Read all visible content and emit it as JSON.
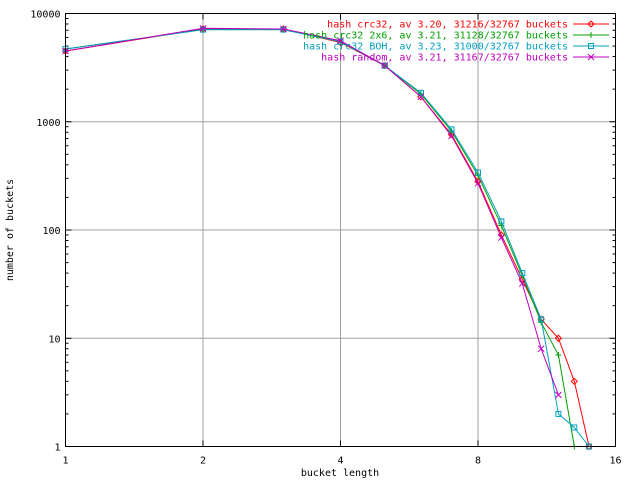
{
  "chart_data": {
    "type": "line",
    "xlabel": "bucket length",
    "ylabel": "number of buckets",
    "x_scale": "log2",
    "y_scale": "log10",
    "xlim": [
      1,
      16
    ],
    "ylim": [
      1,
      10000
    ],
    "x_ticks": [
      {
        "value": 1,
        "label": "1"
      },
      {
        "value": 2,
        "label": "2"
      },
      {
        "value": 4,
        "label": "4"
      },
      {
        "value": 8,
        "label": "8"
      },
      {
        "value": 16,
        "label": "16"
      }
    ],
    "y_ticks": [
      {
        "value": 1,
        "label": "1"
      },
      {
        "value": 10,
        "label": "10"
      },
      {
        "value": 100,
        "label": "100"
      },
      {
        "value": 1000,
        "label": "1000"
      },
      {
        "value": 10000,
        "label": "10000"
      }
    ],
    "grid": true,
    "legend_position": "top-right",
    "series": [
      {
        "name": "hash crc32, av 3.20, 31216/32767 buckets",
        "color": "#ff0000",
        "marker": "diamond",
        "points": [
          [
            1,
            4500
          ],
          [
            2,
            7200
          ],
          [
            3,
            7200
          ],
          [
            4,
            5400
          ],
          [
            5,
            3300
          ],
          [
            6,
            1700
          ],
          [
            7,
            760
          ],
          [
            8,
            280
          ],
          [
            9,
            90
          ],
          [
            10,
            35
          ],
          [
            11,
            15
          ],
          [
            12,
            10
          ],
          [
            13,
            4
          ],
          [
            14,
            1
          ]
        ]
      },
      {
        "name": "hash crc32 2x6, av 3.21, 31128/32767 buckets",
        "color": "#00a000",
        "marker": "plus",
        "points": [
          [
            1,
            4700
          ],
          [
            2,
            7100
          ],
          [
            3,
            7100
          ],
          [
            4,
            5500
          ],
          [
            5,
            3300
          ],
          [
            6,
            1800
          ],
          [
            7,
            820
          ],
          [
            8,
            320
          ],
          [
            9,
            110
          ],
          [
            10,
            38
          ],
          [
            11,
            14
          ],
          [
            12,
            7
          ],
          [
            13,
            1
          ]
        ]
      },
      {
        "name": "hash crc32 BOH, av 3.23, 31000/32767 buckets",
        "color": "#00a0c0",
        "marker": "square",
        "points": [
          [
            1,
            4700
          ],
          [
            2,
            7100
          ],
          [
            3,
            7100
          ],
          [
            4,
            5500
          ],
          [
            5,
            3300
          ],
          [
            6,
            1850
          ],
          [
            7,
            850
          ],
          [
            8,
            340
          ],
          [
            9,
            120
          ],
          [
            10,
            40
          ],
          [
            11,
            15
          ],
          [
            12,
            2
          ],
          [
            13,
            1.5
          ],
          [
            14,
            1
          ]
        ]
      },
      {
        "name": "hash random, av 3.21, 31167/32767 buckets",
        "color": "#c000c0",
        "marker": "cross",
        "points": [
          [
            1,
            4500
          ],
          [
            2,
            7300
          ],
          [
            3,
            7200
          ],
          [
            4,
            5600
          ],
          [
            5,
            3300
          ],
          [
            6,
            1700
          ],
          [
            7,
            740
          ],
          [
            8,
            270
          ],
          [
            9,
            85
          ],
          [
            10,
            32
          ],
          [
            11,
            8
          ],
          [
            12,
            3
          ]
        ]
      }
    ]
  }
}
